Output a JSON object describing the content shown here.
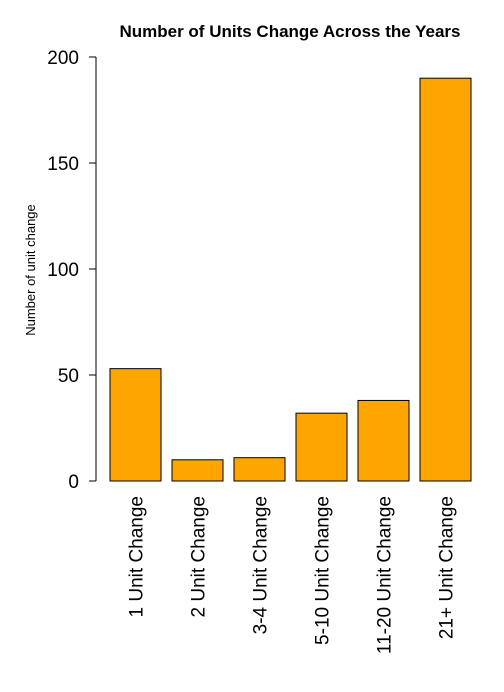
{
  "chart_data": {
    "type": "bar",
    "title": "Number of Units Change Across the Years",
    "xlabel": "",
    "ylabel": "Number of unit change",
    "categories": [
      "1 Unit Change",
      "2 Unit Change",
      "3-4 Unit Change",
      "5-10 Unit Change",
      "11-20 Unit Change",
      "21+ Unit Change"
    ],
    "values": [
      53,
      10,
      11,
      32,
      38,
      190
    ],
    "ylim": [
      0,
      200
    ],
    "yticks": [
      0,
      50,
      100,
      150,
      200
    ],
    "bar_color": "#FFA500",
    "grid": false,
    "legend": "none"
  }
}
